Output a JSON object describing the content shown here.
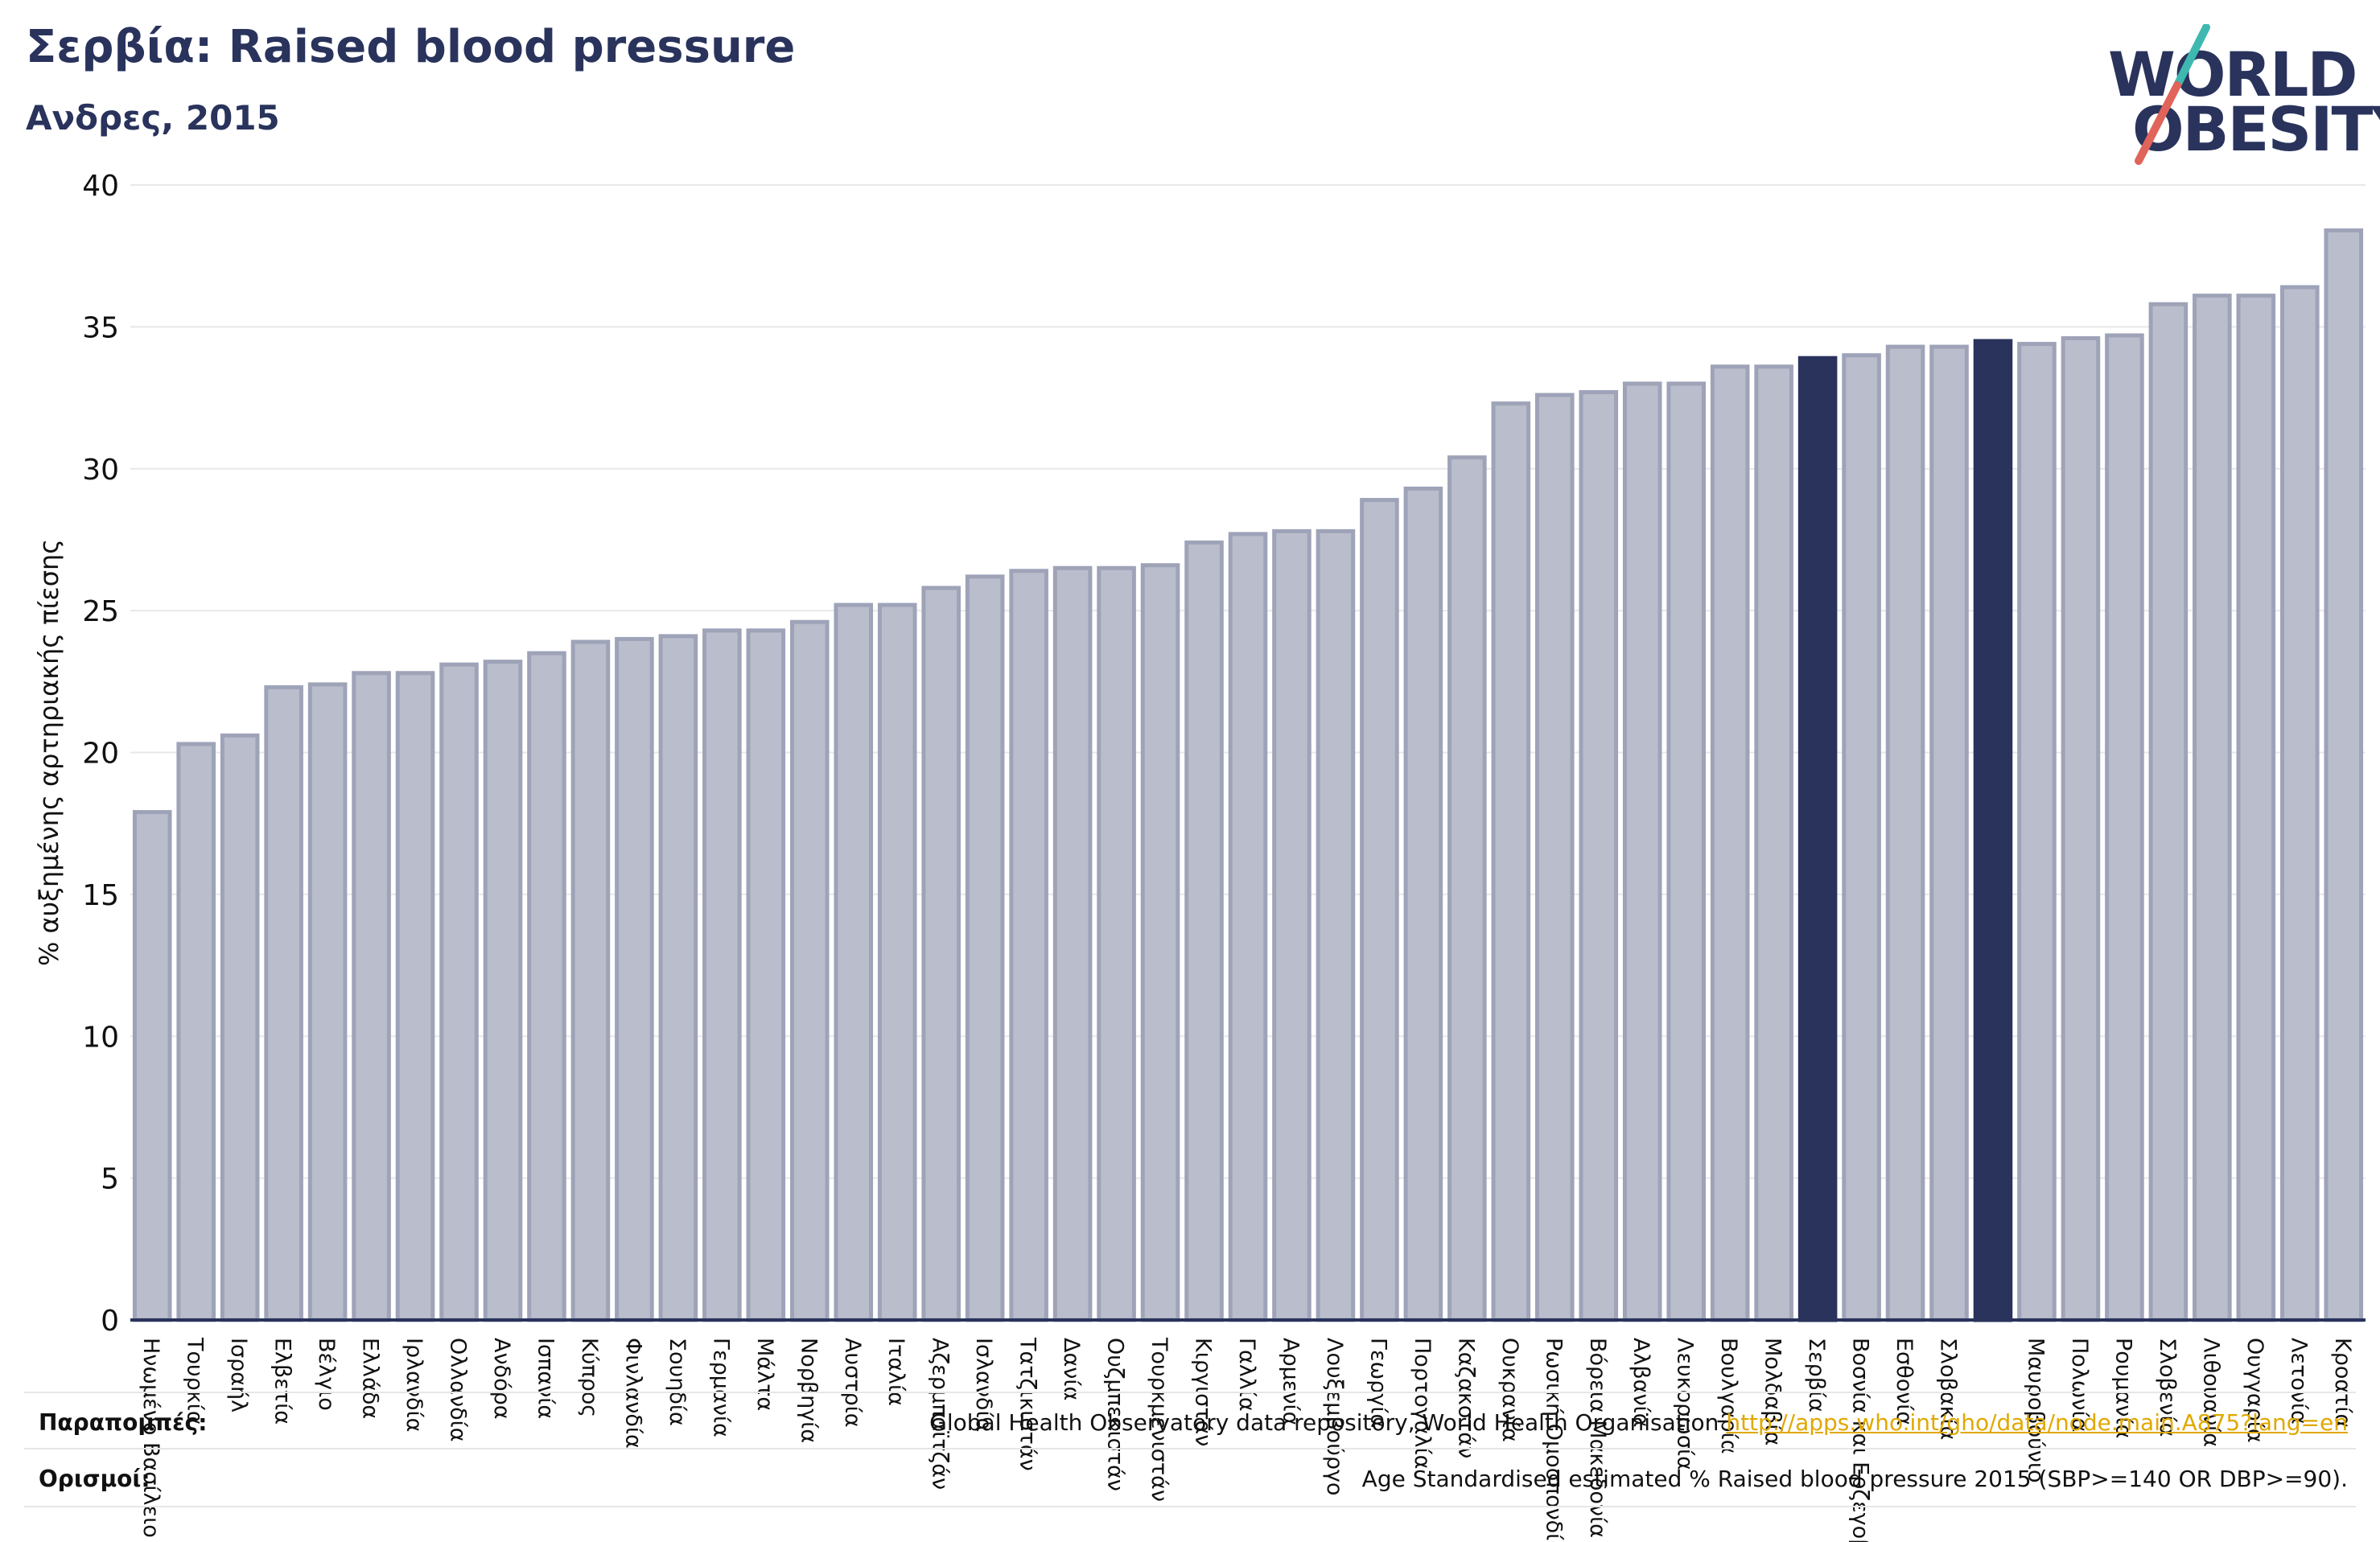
{
  "title": "Σερβία: Raised blood pressure",
  "subtitle": "Ανδρες, 2015",
  "logo": {
    "line1": "WORLD",
    "line2": "OBESITY"
  },
  "colors": {
    "bar": "#babdcb",
    "bar_border": "#9ea3b8",
    "highlight": "#29335c",
    "axis": "#29335c",
    "grid": "#e8e8e8",
    "title": "#29335c",
    "logo_accent_teal": "#3fb8b0",
    "logo_accent_red": "#e0645a",
    "link": "#e0a800"
  },
  "chart_data": {
    "type": "bar",
    "ylabel": "% αυξημένης αρτηριακής πίεσης",
    "xlabel": "",
    "ylim": [
      0,
      40
    ],
    "yticks": [
      0,
      5,
      10,
      15,
      20,
      25,
      30,
      35,
      40
    ],
    "grid": true,
    "categories": [
      "Ηνωμένο Βασίλειο",
      "Τουρκία",
      "Ισραήλ",
      "Ελβετία",
      "Βέλγιο",
      "Ελλάδα",
      "Ιρλανδία",
      "Ολλανδία",
      "Ανδόρα",
      "Ισπανία",
      "Κύπρος",
      "Φινλανδία",
      "Σουηδία",
      "Γερμανία",
      "Μάλτα",
      "Νορβηγία",
      "Αυστρία",
      "Ιταλία",
      "Αζερμπαϊτζάν",
      "Ισλανδία",
      "Τατζικιστάν",
      "Δανία",
      "Ουζμπεκιστάν",
      "Τουρκμενιστάν",
      "Κιργιστάν",
      "Γαλλία",
      "Αρμενία",
      "Λουξεμβούργο",
      "Γεωργία",
      "Πορτογαλία",
      "Καζακστάν",
      "Ουκρανία",
      "Ρωσική Ομοσπονδία",
      "Βόρεια Μακεδονία",
      "Αλβανία",
      "Λευκορωσία",
      "Βουλγαρία",
      "Μολδαβία",
      "Σερβία",
      "Βοσνία και Ερζεγοβίνη",
      "Εσθονία",
      "Σλοβακία",
      "",
      "Μαυροβούνιο",
      "Πολωνία",
      "Ρουμανία",
      "Σλοβενία",
      "Λιθουανία",
      "Ουγγαρία",
      "Λετονία",
      "Κροατία"
    ],
    "values": [
      17.9,
      20.3,
      20.6,
      22.3,
      22.4,
      22.8,
      22.8,
      23.1,
      23.2,
      23.5,
      23.9,
      24.0,
      24.1,
      24.3,
      24.3,
      24.6,
      25.2,
      25.2,
      25.8,
      26.2,
      26.4,
      26.5,
      26.5,
      26.6,
      27.4,
      27.7,
      27.8,
      27.8,
      28.9,
      29.3,
      30.4,
      32.3,
      32.6,
      32.7,
      33.0,
      33.0,
      33.6,
      33.6,
      33.9,
      34.0,
      34.3,
      34.3,
      34.5,
      34.4,
      34.6,
      34.7,
      35.8,
      36.1,
      36.1,
      36.4,
      38.4
    ],
    "highlighted": [
      38,
      42
    ]
  },
  "footer": {
    "sources_label": "Παραπομπές:",
    "sources_text": "Global Health Observatory data repository, World Health Organisation ",
    "sources_link": "http://apps.who.int/gho/data/node.main.A875?lang=en",
    "definitions_label": "Ορισμοί:",
    "definitions_text": "Age Standardised estimated % Raised blood pressure 2015 (SBP>=140 OR DBP>=90)."
  }
}
